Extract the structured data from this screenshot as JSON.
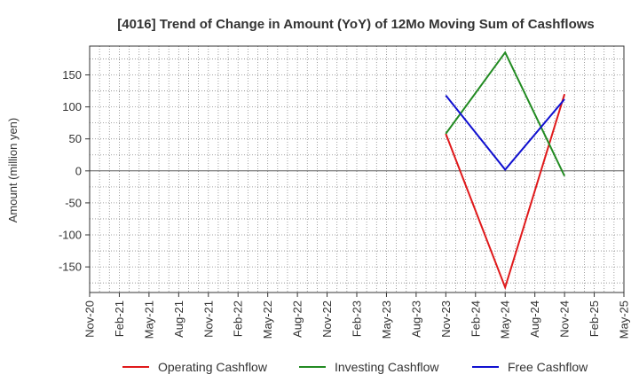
{
  "chart_data": {
    "type": "line",
    "title": "[4016]  Trend of Change in Amount (YoY) of 12Mo Moving Sum of Cashflows",
    "xlabel": "",
    "ylabel": "Amount (million yen)",
    "ylim": [
      -190,
      195
    ],
    "yticks": [
      150,
      100,
      50,
      0,
      -50,
      -100,
      -150
    ],
    "ytick_labels": [
      "150",
      "100",
      "50",
      "0",
      "-50",
      "-100",
      "-150"
    ],
    "x_tick_labels": [
      "Nov-20",
      "Feb-21",
      "May-21",
      "Aug-21",
      "Nov-21",
      "Feb-22",
      "May-22",
      "Aug-22",
      "Nov-22",
      "Feb-23",
      "May-23",
      "Aug-23",
      "Nov-23",
      "Feb-24",
      "May-24",
      "Aug-24",
      "Nov-24",
      "Feb-25",
      "May-25"
    ],
    "grid": true,
    "legend_position": "bottom",
    "x": [
      "Nov-23",
      "May-24",
      "Nov-24"
    ],
    "series": [
      {
        "name": "Operating Cashflow",
        "color": "#e0191b",
        "values": [
          58,
          -182,
          120
        ]
      },
      {
        "name": "Investing Cashflow",
        "color": "#228b22",
        "values": [
          58,
          185,
          -8
        ]
      },
      {
        "name": "Free Cashflow",
        "color": "#1010d0",
        "values": [
          118,
          2,
          112
        ]
      }
    ]
  }
}
